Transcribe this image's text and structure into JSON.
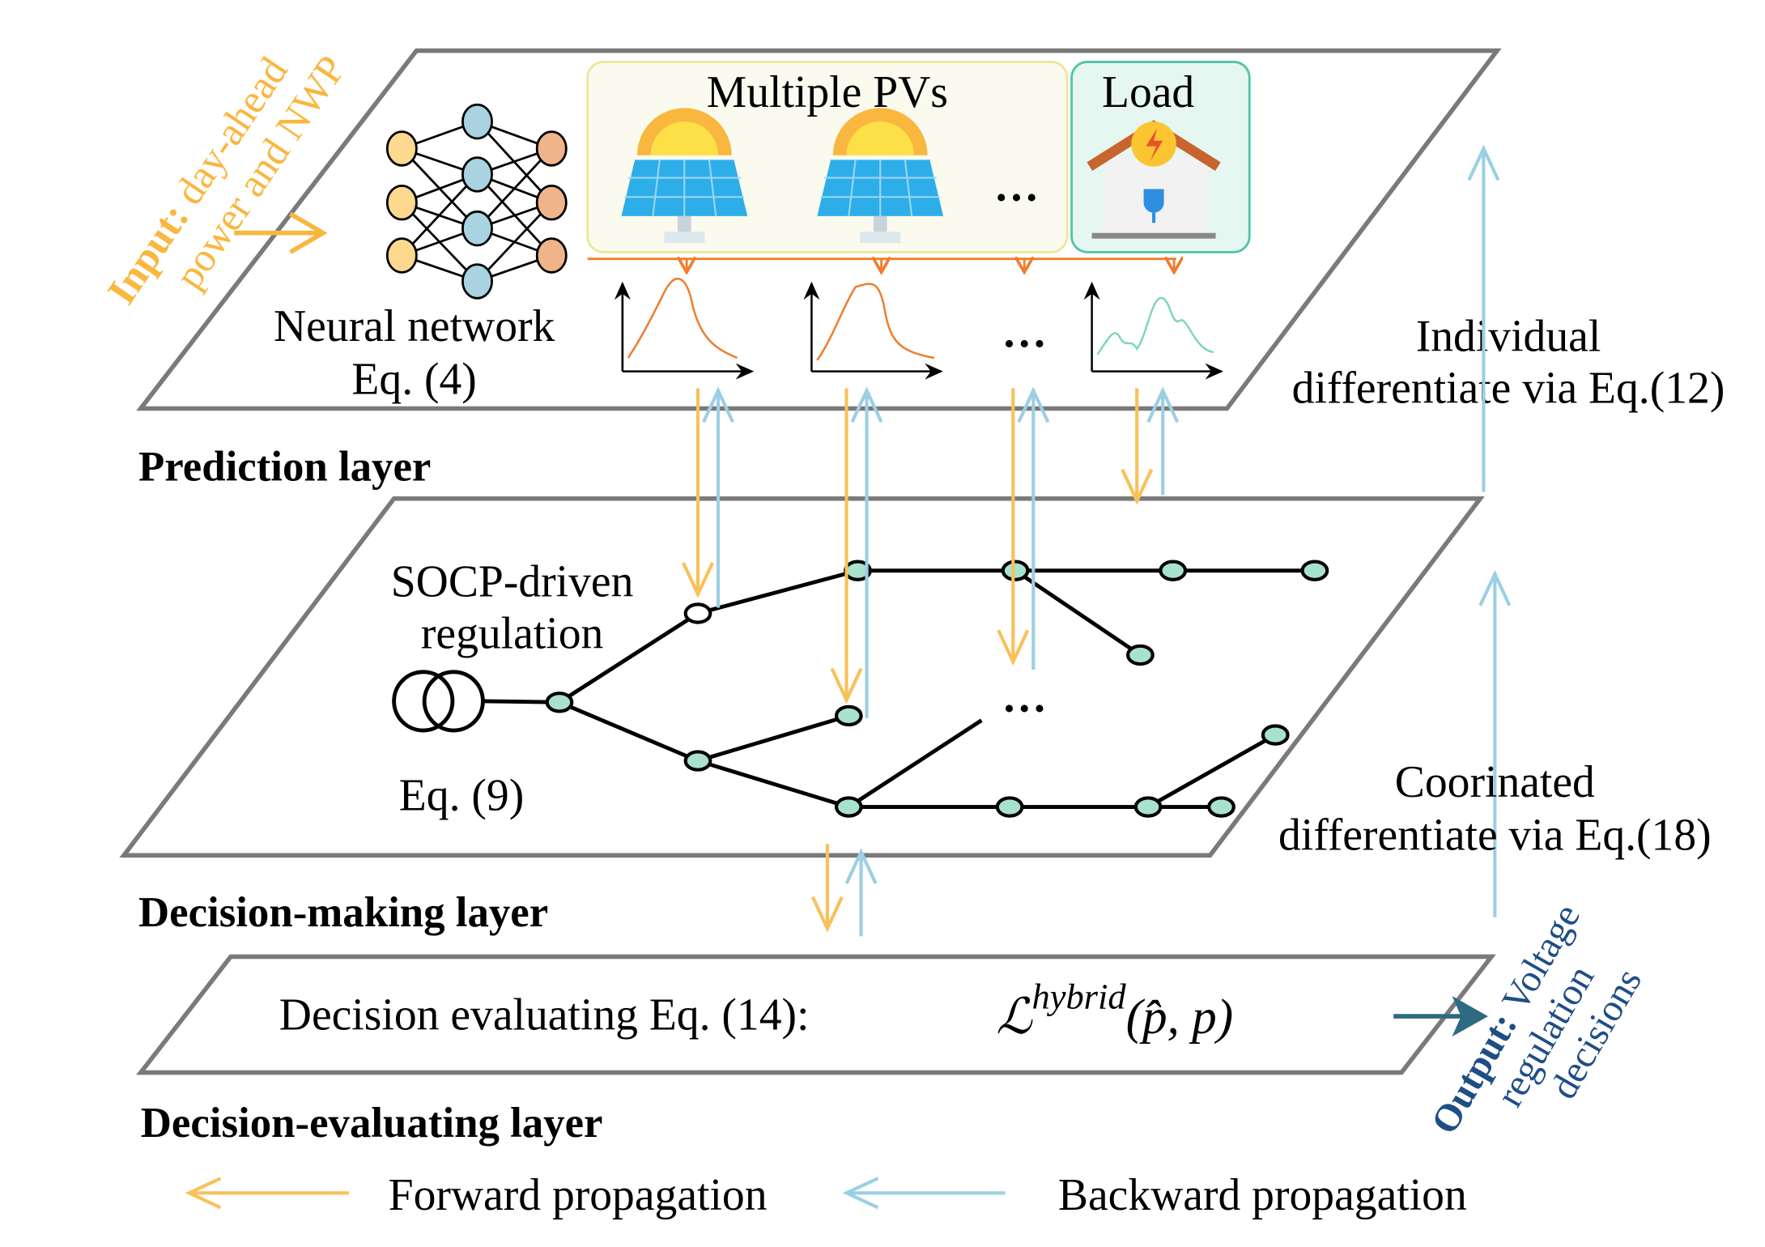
{
  "input_label": {
    "bold": "Input:",
    "line1": "day-ahead",
    "line2": "power and NWP"
  },
  "prediction_layer": {
    "title": "Prediction layer",
    "nn_label": "Neural network",
    "nn_eq": "Eq. (4)",
    "pv_title": "Multiple PVs",
    "load_title": "Load",
    "ellipsis": "…"
  },
  "individual": {
    "line1": "Individual",
    "line2": "differentiate via Eq.(12)"
  },
  "decision_layer": {
    "title": "Decision-making layer",
    "socp_line1": "SOCP-driven",
    "socp_line2": "regulation",
    "eq": "Eq. (9)",
    "ellipsis": "…"
  },
  "coordinated": {
    "line1": "Coorinated",
    "line2": "differentiate via Eq.(18)"
  },
  "evaluating_layer": {
    "title": "Decision-evaluating layer",
    "text": "Decision evaluating Eq. (14):",
    "formula_L": "ℒ",
    "formula_sup": "hybrid",
    "formula_args": "(p̂, p)"
  },
  "output_label": {
    "bold": "Output:",
    "line1": "Voltage",
    "line2": "regulation",
    "line3": "decisions"
  },
  "legend": {
    "forward": "Forward propagation",
    "backward": "Backward propagation"
  },
  "colors": {
    "forward": "#f9c15a",
    "backward": "#9dcfe3",
    "output": "#1f4e85",
    "input": "#f9b73f",
    "curve_pv": "#ef7d2d",
    "curve_load": "#7fd6bd"
  }
}
